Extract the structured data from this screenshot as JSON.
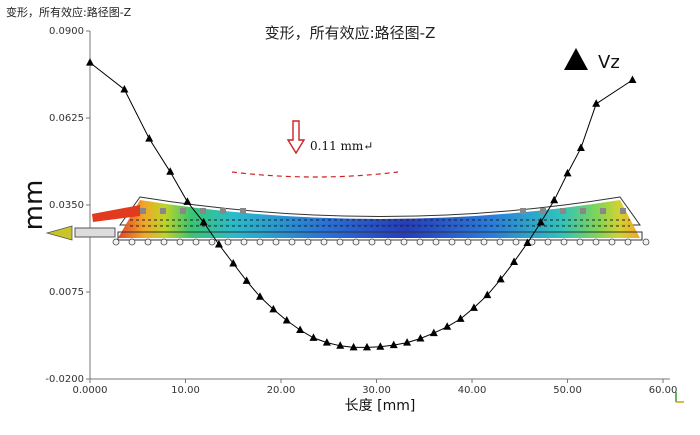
{
  "window": {
    "corner_title": "变形，所有效应:路径图-Z"
  },
  "chart_data": {
    "type": "line",
    "title": "变形，所有效应:路径图-Z",
    "xlabel": "长度 [mm]",
    "ylabel": "mm",
    "xlim": [
      0,
      57
    ],
    "ylim": [
      -0.02,
      0.09
    ],
    "x_ticks": [
      "0.0000",
      "10.00",
      "20.00",
      "30.00",
      "40.00",
      "50.00",
      "60.00"
    ],
    "y_ticks": [
      "0.0900",
      "0.0625",
      "0.0350",
      "0.0075",
      "-0.0200"
    ],
    "y_tick_values": [
      0.09,
      0.0625,
      0.035,
      0.0075,
      -0.02
    ],
    "x_tick_values": [
      0,
      10,
      20,
      30,
      40,
      50,
      60
    ],
    "series": [
      {
        "name": "Vz",
        "marker": "triangle",
        "color": "#000000",
        "x": [
          0,
          3.6,
          6.2,
          8.4,
          10.2,
          11.9,
          13.5,
          15.0,
          16.4,
          17.8,
          19.2,
          20.6,
          22.0,
          23.4,
          24.8,
          26.2,
          27.6,
          29.0,
          30.4,
          31.8,
          33.2,
          34.6,
          36.0,
          37.4,
          38.8,
          40.2,
          41.6,
          43.0,
          44.4,
          45.8,
          47.2,
          48.6,
          50.0,
          51.4,
          53.0,
          56.8
        ],
        "y": [
          0.08,
          0.0715,
          0.056,
          0.0455,
          0.036,
          0.0295,
          0.0225,
          0.0165,
          0.011,
          0.006,
          0.002,
          -0.0015,
          -0.0045,
          -0.007,
          -0.0085,
          -0.0095,
          -0.01,
          -0.01,
          -0.0098,
          -0.0093,
          -0.0085,
          -0.0072,
          -0.0055,
          -0.0035,
          -0.001,
          0.0025,
          0.0065,
          0.0115,
          0.017,
          0.023,
          0.0295,
          0.0365,
          0.045,
          0.053,
          0.067,
          0.0745
        ]
      }
    ],
    "legend": {
      "label": "Vz",
      "placement": "top-right"
    },
    "annotation": {
      "text": "0.11 mm↵",
      "arrow_color": "#cc2222"
    },
    "grid": false
  }
}
